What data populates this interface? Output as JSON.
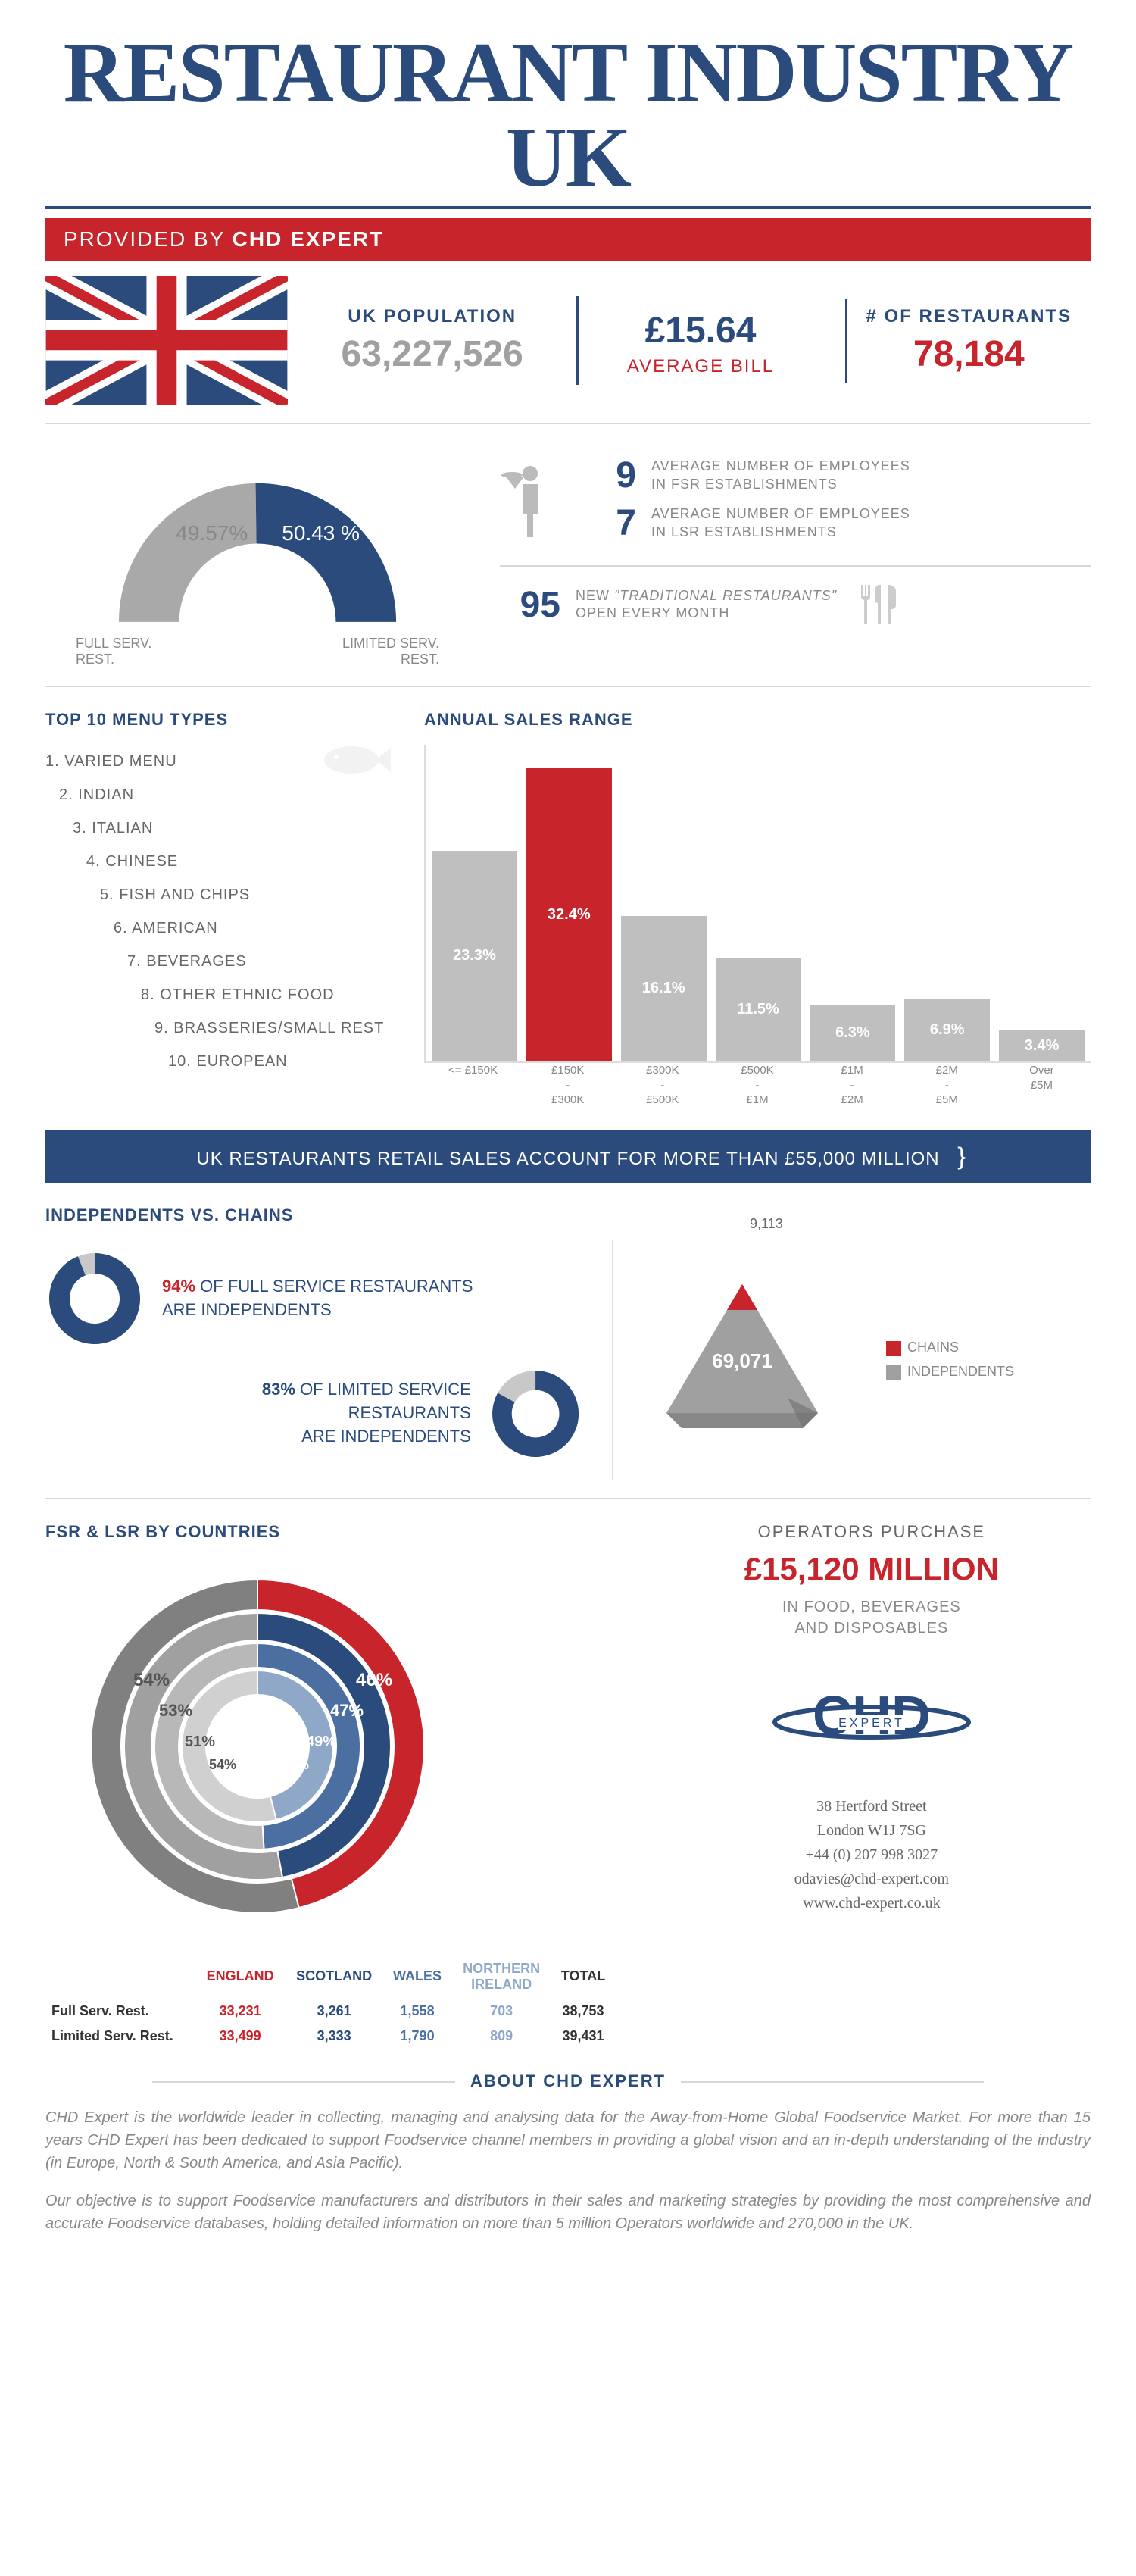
{
  "title": "RESTAURANT INDUSTRY UK",
  "provider_prefix": "PROVIDED BY ",
  "provider_name": "CHD EXPERT",
  "flag_colors": {
    "blue": "#2a4b7c",
    "red": "#c8242b",
    "white": "#ffffff"
  },
  "top_stats": {
    "pop_label": "UK POPULATION",
    "pop_value": "63,227,526",
    "bill_value": "£15.64",
    "bill_label": "AVERAGE BILL",
    "rest_label": "# OF RESTAURANTS",
    "rest_value": "78,184"
  },
  "service_split": {
    "full_pct": 49.57,
    "limited_pct": 50.43,
    "full_pct_txt": "49.57%",
    "limited_pct_txt": "50.43 %",
    "full_label": "FULL SERV.\nREST.",
    "limited_label": "LIMITED SERV.\nREST.",
    "colors": {
      "full": "#a9a9a9",
      "limited": "#2a4b7c"
    }
  },
  "employees": {
    "fsr_num": "9",
    "fsr_txt": "AVERAGE NUMBER OF EMPLOYEES\nIN FSR ESTABLISHMENTS",
    "lsr_num": "7",
    "lsr_txt": "AVERAGE NUMBER OF EMPLOYEES\nIN LSR ESTABLISHMENTS",
    "new_num": "95",
    "new_txt_prefix": "NEW ",
    "new_txt_em": "\"TRADITIONAL RESTAURANTS\"",
    "new_txt_suffix": "\nOPEN EVERY MONTH"
  },
  "menu_heading": "TOP 10 MENU TYPES",
  "menu_items": [
    "1. VARIED MENU",
    "2. INDIAN",
    "3. ITALIAN",
    "4. CHINESE",
    "5. FISH AND CHIPS",
    "6. AMERICAN",
    "7. BEVERAGES",
    "8. OTHER ETHNIC FOOD",
    "9. BRASSERIES/SMALL REST",
    "10. EUROPEAN"
  ],
  "sales_heading": "ANNUAL SALES RANGE",
  "sales_chart": {
    "type": "bar",
    "max": 35,
    "bars": [
      {
        "label": "<= £150K",
        "value": 23.3,
        "txt": "23.3%",
        "color": "#bfbfbf"
      },
      {
        "label": "£150K\n-\n£300K",
        "value": 32.4,
        "txt": "32.4%",
        "color": "#c8242b"
      },
      {
        "label": "£300K\n-\n£500K",
        "value": 16.1,
        "txt": "16.1%",
        "color": "#bfbfbf"
      },
      {
        "label": "£500K\n-\n£1M",
        "value": 11.5,
        "txt": "11.5%",
        "color": "#bfbfbf"
      },
      {
        "label": "£1M\n-\n£2M",
        "value": 6.3,
        "txt": "6.3%",
        "color": "#bfbfbf"
      },
      {
        "label": "£2M\n-\n£5M",
        "value": 6.9,
        "txt": "6.9%",
        "color": "#bfbfbf"
      },
      {
        "label": "Over\n£5M",
        "value": 3.4,
        "txt": "3.4%",
        "color": "#bfbfbf"
      }
    ]
  },
  "banner_text": "UK RESTAURANTS RETAIL SALES ACCOUNT FOR MORE THAN £55,000 MILLION",
  "ind_heading": "INDEPENDENTS  VS. CHAINS",
  "ind_full": {
    "pct": "94%",
    "txt": "OF FULL SERVICE RESTAURANTS\nARE INDEPENDENTS",
    "donut_pct": 94,
    "color": "#2a4b7c",
    "rest_color": "#c8c8c8"
  },
  "ind_lim": {
    "pct": "83%",
    "txt": "OF LIMITED SERVICE RESTAURANTS\nARE INDEPENDENTS",
    "donut_pct": 83,
    "color": "#2a4b7c",
    "rest_color": "#c8c8c8"
  },
  "pyramid": {
    "chains": "9,113",
    "independents": "69,071",
    "chain_color": "#c8242b",
    "ind_color": "#a0a0a0"
  },
  "legend_chains": "CHAINS",
  "legend_ind": "INDEPENDENTS",
  "ring_heading": "FSR & LSR BY COUNTRIES",
  "rings": {
    "outer": [
      {
        "v": 46,
        "c": "#c8242b"
      },
      {
        "v": 54,
        "c": "#808080"
      }
    ],
    "r2": [
      {
        "v": 47,
        "c": "#2a4b7c"
      },
      {
        "v": 53,
        "c": "#a0a0a0"
      }
    ],
    "r3": [
      {
        "v": 49,
        "c": "#4a6fa0"
      },
      {
        "v": 51,
        "c": "#b8b8b8"
      }
    ],
    "inner": [
      {
        "v": 46,
        "c": "#8fa8c8"
      },
      {
        "v": 54,
        "c": "#d0d0d0"
      }
    ],
    "labels": {
      "l46": "46%",
      "l54": "54%",
      "l47": "47%",
      "l53": "53%",
      "l49": "49%",
      "l51": "51%",
      "l46b": "46%",
      "l54b": "54%"
    }
  },
  "country_table": {
    "headers": [
      "",
      "ENGLAND",
      "SCOTLAND",
      "WALES",
      "NORTHERN\nIRELAND",
      "TOTAL"
    ],
    "header_colors": [
      "#333",
      "#c8242b",
      "#2a4b7c",
      "#4a6fa0",
      "#8fa8c8",
      "#333"
    ],
    "rows": [
      {
        "h": "Full Serv. Rest.",
        "cells": [
          "33,231",
          "3,261",
          "1,558",
          "703",
          "38,753"
        ]
      },
      {
        "h": "Limited Serv. Rest.",
        "cells": [
          "33,499",
          "3,333",
          "1,790",
          "809",
          "39,431"
        ]
      }
    ]
  },
  "purchase": {
    "l1": "OPERATORS PURCHASE",
    "l2": "£15,120 MILLION",
    "l3": "IN FOOD, BEVERAGES\nAND DISPOSABLES"
  },
  "address": {
    "street": "38 Hertford Street",
    "city": "London W1J 7SG",
    "phone": "+44 (0) 207 998 3027",
    "email": "odavies@chd-expert.com",
    "web": "www.chd-expert.co.uk"
  },
  "about_heading": "ABOUT CHD EXPERT",
  "about_p1": "CHD Expert is the worldwide leader in collecting, managing and analysing data for the Away-from-Home Global Foodservice Market. For more than 15 years CHD Expert has been dedicated to support Foodservice channel members in providing a global vision and an in-depth understanding of the industry (in Europe, North & South America, and Asia Pacific).",
  "about_p2": "Our objective is to support Foodservice manufacturers and distributors in their sales and marketing strategies by providing the most comprehensive and accurate Foodservice databases, holding detailed information on more than 5 million Operators worldwide and 270,000 in the UK."
}
